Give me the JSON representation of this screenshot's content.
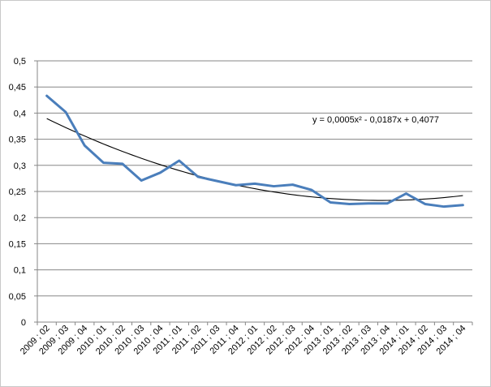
{
  "chart_data": {
    "type": "line",
    "categories": [
      "2009 ; 02",
      "2009 ; 03",
      "2009 ; 04",
      "2010 ; 01",
      "2010 ; 02",
      "2010 ; 03",
      "2010 ; 04",
      "2011 ; 01",
      "2011 ; 02",
      "2011 ; 03",
      "2011 ; 04",
      "2012 ; 01",
      "2012 ; 02",
      "2012 ; 03",
      "2012 ; 04",
      "2013 ; 01",
      "2013 ; 02",
      "2013 ; 03",
      "2013 ; 04",
      "2014 ; 01",
      "2014 ; 02",
      "2014 ; 03",
      "2014 ; 04"
    ],
    "series": [
      {
        "name": "",
        "values": [
          0.433,
          0.402,
          0.338,
          0.305,
          0.303,
          0.271,
          0.286,
          0.309,
          0.278,
          0.27,
          0.262,
          0.265,
          0.26,
          0.263,
          0.253,
          0.229,
          0.226,
          0.227,
          0.227,
          0.246,
          0.226,
          0.221,
          0.224
        ],
        "color": "#4a7ebb"
      }
    ],
    "trendline": {
      "type": "polynomial",
      "order": 2,
      "coefficients": [
        0.0005,
        -0.0187,
        0.4077
      ],
      "color": "#000000",
      "equation_label": "y = 0,0005x² - 0,0187x + 0,4077"
    },
    "y_ticks": [
      "0",
      "0,05",
      "0,1",
      "0,15",
      "0,2",
      "0,25",
      "0,3",
      "0,35",
      "0,4",
      "0,45",
      "0,5"
    ],
    "ylim": [
      0,
      0.5
    ],
    "grid": true,
    "legend": "none",
    "title": "",
    "xlabel": "",
    "ylabel": ""
  }
}
